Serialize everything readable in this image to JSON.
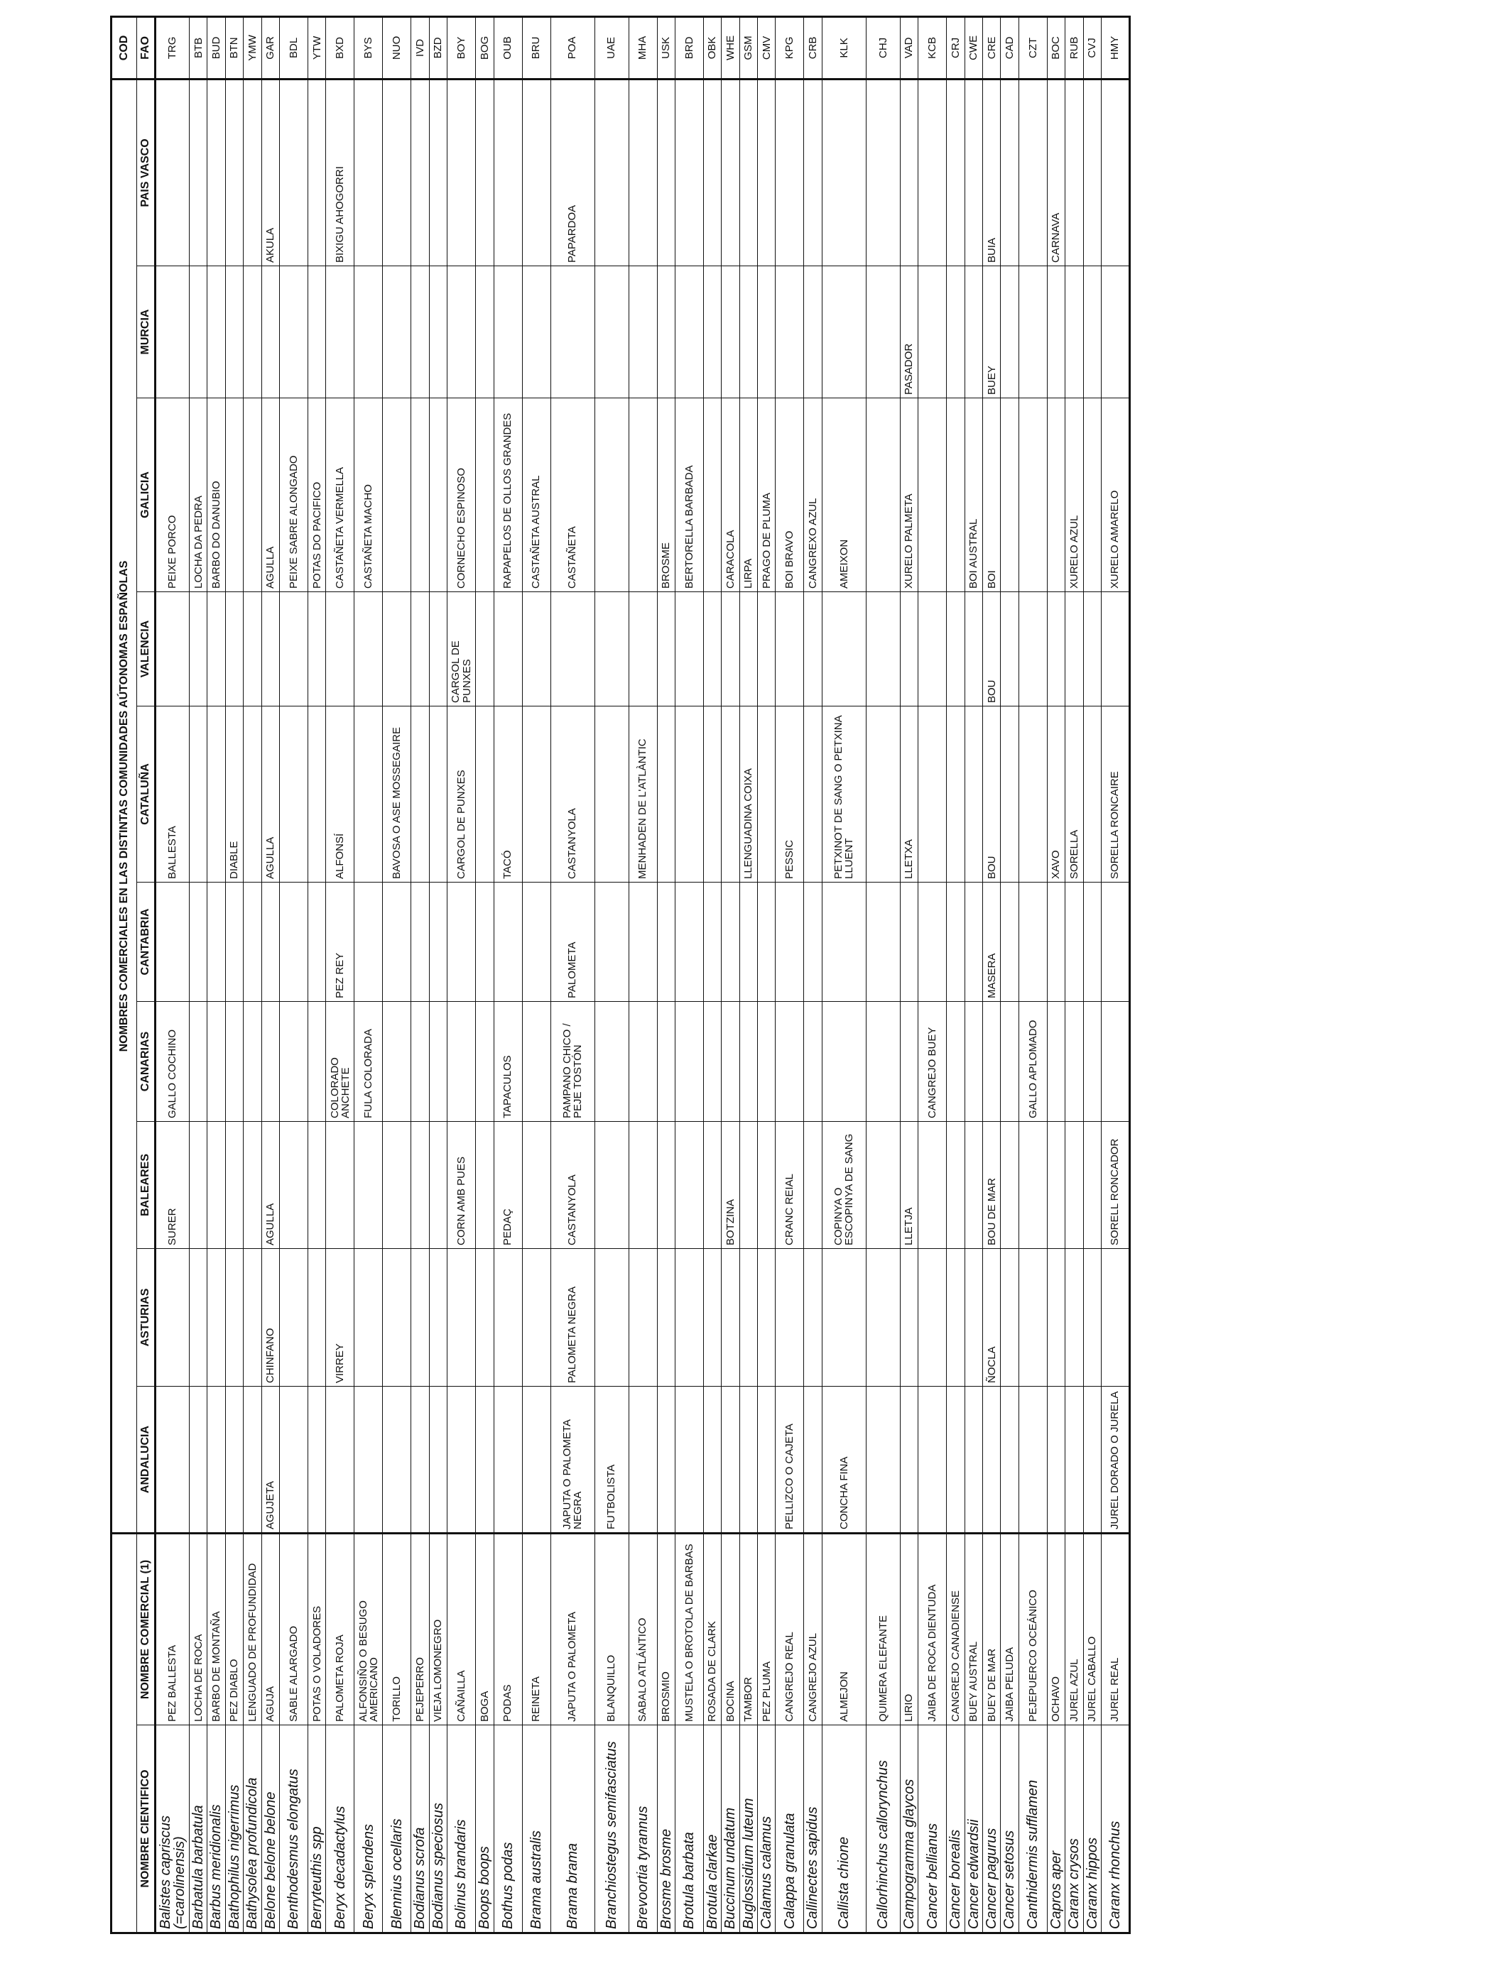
{
  "header": {
    "main_title": "NOMBRES COMERCIALES EN LAS DISTINTAS COMUNIDADES AÚTONOMAS ESPAÑOLAS",
    "cod": "COD",
    "columns": [
      "NOMBRE CIENTIFICO",
      "NOMBRE COMERCIAL (1)",
      "ANDALUCIA",
      "ASTURIAS",
      "BALEARES",
      "CANARIAS",
      "CANTABRIA",
      "CATALUÑA",
      "VALENCIA",
      "GALICIA",
      "MURCIA",
      "PAIS VASCO",
      "FAO"
    ]
  },
  "rows": [
    [
      "Balistes capriscus (=carolinensis)",
      "PEZ BALLESTA",
      "",
      "",
      "SURER",
      "GALLO COCHINO",
      "",
      "BALLESTA",
      "",
      "PEIXE PORCO",
      "",
      "",
      "TRG"
    ],
    [
      "Barbatula barbatula",
      "LOCHA DE ROCA",
      "",
      "",
      "",
      "",
      "",
      "",
      "",
      "LOCHA DA PEDRA",
      "",
      "",
      "BTB"
    ],
    [
      "Barbus meridionalis",
      "BARBO DE MONTAÑA",
      "",
      "",
      "",
      "",
      "",
      "",
      "",
      "BARBO DO DANUBIO",
      "",
      "",
      "BUD"
    ],
    [
      "Bathophilus nigerrimus",
      "PEZ DIABLO",
      "",
      "",
      "",
      "",
      "",
      "DIABLE",
      "",
      "",
      "",
      "",
      "BTN"
    ],
    [
      "Bathysolea profundicola",
      "LENGUADO DE PROFUNDIDAD",
      "",
      "",
      "",
      "",
      "",
      "",
      "",
      "",
      "",
      "",
      "YMW"
    ],
    [
      "Belone belone belone",
      "AGUJA",
      "AGUJETA",
      "CHINFANO",
      "AGULLA",
      "",
      "",
      "AGULLA",
      "",
      "AGULLA",
      "",
      "AKULA",
      "GAR"
    ],
    [
      "Benthodesmus elongatus",
      "SABLE ALARGADO",
      "",
      "",
      "",
      "",
      "",
      "",
      "",
      "PEIXE SABRE ALONGADO",
      "",
      "",
      "BDL"
    ],
    [
      "Berryteuthis spp",
      "POTAS O VOLADORES",
      "",
      "",
      "",
      "",
      "",
      "",
      "",
      "POTAS DO PACIFICO",
      "",
      "",
      "YTW"
    ],
    [
      "Beryx decadactylus",
      "PALOMETA ROJA",
      "",
      "VIRREY",
      "",
      "COLORADO ANCHETE",
      "PEZ REY",
      "ALFONSÍ",
      "",
      "CASTAÑETA VERMELLA",
      "",
      "BIXIGU AHOGORRI",
      "BXD"
    ],
    [
      "Beryx splendens",
      "ALFONSIÑO O BESUGO AMERICANO",
      "",
      "",
      "",
      "FULA COLORADA",
      "",
      "",
      "",
      "CASTAÑETA MACHO",
      "",
      "",
      "BYS"
    ],
    [
      "Blennius ocellaris",
      "TORILLO",
      "",
      "",
      "",
      "",
      "",
      "BAVOSA O ASE MOSSEGAIRE",
      "",
      "",
      "",
      "",
      "NUO"
    ],
    [
      "Bodianus scrofa",
      "PEJEPERRO",
      "",
      "",
      "",
      "",
      "",
      "",
      "",
      "",
      "",
      "",
      "IVD"
    ],
    [
      "Bodianus speciosus",
      "VIEJA LOMONEGRO",
      "",
      "",
      "",
      "",
      "",
      "",
      "",
      "",
      "",
      "",
      "BZD"
    ],
    [
      "Bolinus brandaris",
      "CAÑAILLA",
      "",
      "",
      "CORN AMB PUES",
      "",
      "",
      "CARGOL DE PUNXES",
      "CARGOL DE PUNXES",
      "CORNECHO ESPINOSO",
      "",
      "",
      "BOY"
    ],
    [
      "Boops boops",
      "BOGA",
      "",
      "",
      "",
      "",
      "",
      "",
      "",
      "",
      "",
      "",
      "BOG"
    ],
    [
      "Bothus podas",
      "PODAS",
      "",
      "",
      "PEDAÇ",
      "TAPACULOS",
      "",
      "TACÓ",
      "",
      "RAPAPELOS DE OLLOS GRANDES",
      "",
      "",
      "OUB"
    ],
    [
      "Brama australis",
      "REINETA",
      "",
      "",
      "",
      "",
      "",
      "",
      "",
      "CASTAÑETA AUSTRAL",
      "",
      "",
      "BRU"
    ],
    [
      "Brama brama",
      "JAPUTA O PALOMETA",
      "JAPUTA O PALOMETA NEGRA",
      "PALOMETA NEGRA",
      "CASTANYOLA",
      "PAMPANO CHICO / PEJE TOSTÓN",
      "PALOMETA",
      "CASTANYOLA",
      "",
      "CASTAÑETA",
      "",
      "PAPARDOA",
      "POA"
    ],
    [
      "Branchiostegus semifasciatus",
      "BLANQUILLO",
      "FUTBOLISTA",
      "",
      "",
      "",
      "",
      "",
      "",
      "",
      "",
      "",
      "UAE"
    ],
    [
      "Brevoortia tyrannus",
      "SABALO ATLÁNTICO",
      "",
      "",
      "",
      "",
      "",
      "MENHADEN DE L'ATLÀNTIC",
      "",
      "",
      "",
      "",
      "MHA"
    ],
    [
      "Brosme brosme",
      "BROSMIO",
      "",
      "",
      "",
      "",
      "",
      "",
      "",
      "BROSME",
      "",
      "",
      "USK"
    ],
    [
      "Brotula barbata",
      "MUSTELA O BROTOLA DE BARBAS",
      "",
      "",
      "",
      "",
      "",
      "",
      "",
      "BERTORELLA BARBADA",
      "",
      "",
      "BRD"
    ],
    [
      "Brotula clarkae",
      "ROSADA DE CLARK",
      "",
      "",
      "",
      "",
      "",
      "",
      "",
      "",
      "",
      "",
      "OBK"
    ],
    [
      "Buccinum undatum",
      "BOCINA",
      "",
      "",
      "BOTZINA",
      "",
      "",
      "",
      "",
      "CARACOLA",
      "",
      "",
      "WHE"
    ],
    [
      "Buglossidium luteum",
      "TAMBOR",
      "",
      "",
      "",
      "",
      "",
      "LLENGUADINA COIXA",
      "",
      "LIRPA",
      "",
      "",
      "GSM"
    ],
    [
      "Calamus calamus",
      "PEZ PLUMA",
      "",
      "",
      "",
      "",
      "",
      "",
      "",
      "PRAGO DE PLUMA",
      "",
      "",
      "CMV"
    ],
    [
      "Calappa granulata",
      "CANGREJO REAL",
      "PELLIZCO O CAJETA",
      "",
      "CRANC REIAL",
      "",
      "",
      "PESSIC",
      "",
      "BOI BRAVO",
      "",
      "",
      "KPG"
    ],
    [
      "Callinectes sapidus",
      "CANGREJO AZUL",
      "",
      "",
      "",
      "",
      "",
      "",
      "",
      "CANGREXO AZUL",
      "",
      "",
      "CRB"
    ],
    [
      "Callista chione",
      "ALMEJON",
      "CONCHA FINA",
      "",
      "COPINYA O ESCOPINYA DE SANG",
      "",
      "",
      "PETXINOT DE SANG O PETXINA LLUENT",
      "",
      "AMEIXON",
      "",
      "",
      "KLK"
    ],
    [
      "Callorhinchus callorynchus",
      "QUIMERA ELEFANTE",
      "",
      "",
      "",
      "",
      "",
      "",
      "",
      "",
      "",
      "",
      "CHJ"
    ],
    [
      "Campogramma glaycos",
      "LIRIO",
      "",
      "",
      "LLETJA",
      "",
      "",
      "LLETXA",
      "",
      "XURELO PALMETA",
      "PASADOR",
      "",
      "VAD"
    ],
    [
      "Cancer bellianus",
      "JAIBA DE ROCA DIENTUDA",
      "",
      "",
      "",
      "CANGREJO BUEY",
      "",
      "",
      "",
      "",
      "",
      "",
      "KCB"
    ],
    [
      "Cancer borealis",
      "CANGREJO CANADIENSE",
      "",
      "",
      "",
      "",
      "",
      "",
      "",
      "",
      "",
      "",
      "CRJ"
    ],
    [
      "Cancer edwardsii",
      "BUEY AUSTRAL",
      "",
      "",
      "",
      "",
      "",
      "",
      "",
      "BOI AUSTRAL",
      "",
      "",
      "CWE"
    ],
    [
      "Cancer pagurus",
      "BUEY DE MAR",
      "",
      "ÑOCLA",
      "BOU DE MAR",
      "",
      "MASERA",
      "BOU",
      "BOU",
      "BOI",
      "BUEY",
      "BUIA",
      "CRE"
    ],
    [
      "Cancer setosus",
      "JAIBA PELUDA",
      "",
      "",
      "",
      "",
      "",
      "",
      "",
      "",
      "",
      "",
      "CAD"
    ],
    [
      "Canthidermis sufflamen",
      "PEJEPUERCO OCEÁNICO",
      "",
      "",
      "",
      "GALLO APLOMADO",
      "",
      "",
      "",
      "",
      "",
      "",
      "CZT"
    ],
    [
      "Capros aper",
      "OCHAVO",
      "",
      "",
      "",
      "",
      "",
      "XAVO",
      "",
      "",
      "",
      "CARNAVA",
      "BOC"
    ],
    [
      "Caranx crysos",
      "JUREL AZUL",
      "",
      "",
      "",
      "",
      "",
      "SORELLA",
      "",
      "XURELO AZUL",
      "",
      "",
      "RUB"
    ],
    [
      "Caranx hippos",
      "JUREL CABALLO",
      "",
      "",
      "",
      "",
      "",
      "",
      "",
      "",
      "",
      "",
      "CVJ"
    ],
    [
      "Caranx rhonchus",
      "JUREL REAL",
      "JUREL DORADO O JURELA",
      "",
      "SORELL RONCADOR",
      "",
      "",
      "SORELLA RONCAIRE",
      "",
      "XURELO AMARELO",
      "",
      "",
      "HMY"
    ]
  ]
}
